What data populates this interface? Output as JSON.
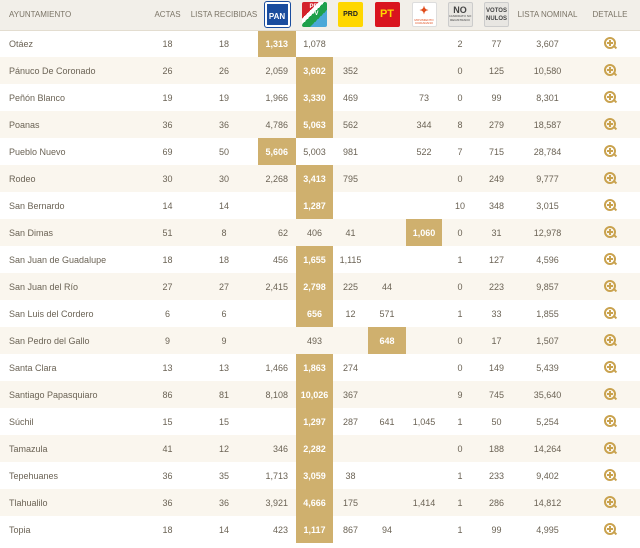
{
  "header": {
    "ayuntamiento": "AYUNTAMIENTO",
    "actas": "ACTAS",
    "lista_recibidas": "LISTA RECIBIDAS",
    "lista_nominal": "LISTA NOMINAL",
    "detalle": "DETALLE"
  },
  "parties": [
    {
      "key": "pan",
      "label": "PAN",
      "color": "#1b4d9e"
    },
    {
      "key": "pri",
      "label": "PRI PV",
      "color": "#d4222a"
    },
    {
      "key": "prd",
      "label": "PRD",
      "color": "#ffd700"
    },
    {
      "key": "pt",
      "label": "PT",
      "color": "#d9141e"
    },
    {
      "key": "mc",
      "label": "MOVIMIENTO CIUDADANO",
      "color": "#e04c1b"
    },
    {
      "key": "no",
      "label": "NO",
      "sub": "CANDIDATO NO REGISTRADO"
    },
    {
      "key": "nulos",
      "label": "VOTOS NULOS"
    }
  ],
  "highlight_color": "#cfb06e",
  "detail_icon": "zoom-in-icon",
  "rows": [
    {
      "name": "Otáez",
      "actas": "18",
      "lista": "18",
      "pan": "1,313",
      "pri": "1,078",
      "prd": "",
      "pt": "",
      "mc": "",
      "no": "2",
      "nulos": "77",
      "nominal": "3,607",
      "winner": "pan"
    },
    {
      "name": "Pánuco De Coronado",
      "actas": "26",
      "lista": "26",
      "pan": "2,059",
      "pri": "3,602",
      "prd": "352",
      "pt": "",
      "mc": "",
      "no": "0",
      "nulos": "125",
      "nominal": "10,580",
      "winner": "pri"
    },
    {
      "name": "Peñón Blanco",
      "actas": "19",
      "lista": "19",
      "pan": "1,966",
      "pri": "3,330",
      "prd": "469",
      "pt": "",
      "mc": "73",
      "no": "0",
      "nulos": "99",
      "nominal": "8,301",
      "winner": "pri"
    },
    {
      "name": "Poanas",
      "actas": "36",
      "lista": "36",
      "pan": "4,786",
      "pri": "5,063",
      "prd": "562",
      "pt": "",
      "mc": "344",
      "no": "8",
      "nulos": "279",
      "nominal": "18,587",
      "winner": "pri"
    },
    {
      "name": "Pueblo Nuevo",
      "actas": "69",
      "lista": "50",
      "pan": "5,606",
      "pri": "5,003",
      "prd": "981",
      "pt": "",
      "mc": "522",
      "no": "7",
      "nulos": "715",
      "nominal": "28,784",
      "winner": "pan"
    },
    {
      "name": "Rodeo",
      "actas": "30",
      "lista": "30",
      "pan": "2,268",
      "pri": "3,413",
      "prd": "795",
      "pt": "",
      "mc": "",
      "no": "0",
      "nulos": "249",
      "nominal": "9,777",
      "winner": "pri"
    },
    {
      "name": "San Bernardo",
      "actas": "14",
      "lista": "14",
      "pan": "",
      "pri": "1,287",
      "prd": "",
      "pt": "",
      "mc": "",
      "no": "10",
      "nulos": "348",
      "nominal": "3,015",
      "winner": "pri"
    },
    {
      "name": "San Dimas",
      "actas": "51",
      "lista": "8",
      "pan": "62",
      "pri": "406",
      "prd": "41",
      "pt": "",
      "mc": "1,060",
      "no": "0",
      "nulos": "31",
      "nominal": "12,978",
      "winner": "mc"
    },
    {
      "name": "San Juan de Guadalupe",
      "actas": "18",
      "lista": "18",
      "pan": "456",
      "pri": "1,655",
      "prd": "1,115",
      "pt": "",
      "mc": "",
      "no": "1",
      "nulos": "127",
      "nominal": "4,596",
      "winner": "pri"
    },
    {
      "name": "San Juan del Río",
      "actas": "27",
      "lista": "27",
      "pan": "2,415",
      "pri": "2,798",
      "prd": "225",
      "pt": "44",
      "mc": "",
      "no": "0",
      "nulos": "223",
      "nominal": "9,857",
      "winner": "pri"
    },
    {
      "name": "San Luis del Cordero",
      "actas": "6",
      "lista": "6",
      "pan": "",
      "pri": "656",
      "prd": "12",
      "pt": "571",
      "mc": "",
      "no": "1",
      "nulos": "33",
      "nominal": "1,855",
      "winner": "pri"
    },
    {
      "name": "San Pedro del Gallo",
      "actas": "9",
      "lista": "9",
      "pan": "",
      "pri": "493",
      "prd": "",
      "pt": "648",
      "mc": "",
      "no": "0",
      "nulos": "17",
      "nominal": "1,507",
      "winner": "pt"
    },
    {
      "name": "Santa Clara",
      "actas": "13",
      "lista": "13",
      "pan": "1,466",
      "pri": "1,863",
      "prd": "274",
      "pt": "",
      "mc": "",
      "no": "0",
      "nulos": "149",
      "nominal": "5,439",
      "winner": "pri"
    },
    {
      "name": "Santiago Papasquiaro",
      "actas": "86",
      "lista": "81",
      "pan": "8,108",
      "pri": "10,026",
      "prd": "367",
      "pt": "",
      "mc": "",
      "no": "9",
      "nulos": "745",
      "nominal": "35,640",
      "winner": "pri"
    },
    {
      "name": "Súchil",
      "actas": "15",
      "lista": "15",
      "pan": "",
      "pri": "1,297",
      "prd": "287",
      "pt": "641",
      "mc": "1,045",
      "no": "1",
      "nulos": "50",
      "nominal": "5,254",
      "winner": "pri"
    },
    {
      "name": "Tamazula",
      "actas": "41",
      "lista": "12",
      "pan": "346",
      "pri": "2,282",
      "prd": "",
      "pt": "",
      "mc": "",
      "no": "0",
      "nulos": "188",
      "nominal": "14,264",
      "winner": "pri"
    },
    {
      "name": "Tepehuanes",
      "actas": "36",
      "lista": "35",
      "pan": "1,713",
      "pri": "3,059",
      "prd": "38",
      "pt": "",
      "mc": "",
      "no": "1",
      "nulos": "233",
      "nominal": "9,402",
      "winner": "pri"
    },
    {
      "name": "Tlahualilo",
      "actas": "36",
      "lista": "36",
      "pan": "3,921",
      "pri": "4,666",
      "prd": "175",
      "pt": "",
      "mc": "1,414",
      "no": "1",
      "nulos": "286",
      "nominal": "14,812",
      "winner": "pri"
    },
    {
      "name": "Topia",
      "actas": "18",
      "lista": "14",
      "pan": "423",
      "pri": "1,117",
      "prd": "867",
      "pt": "94",
      "mc": "",
      "no": "1",
      "nulos": "99",
      "nominal": "4,995",
      "winner": "pri"
    }
  ]
}
